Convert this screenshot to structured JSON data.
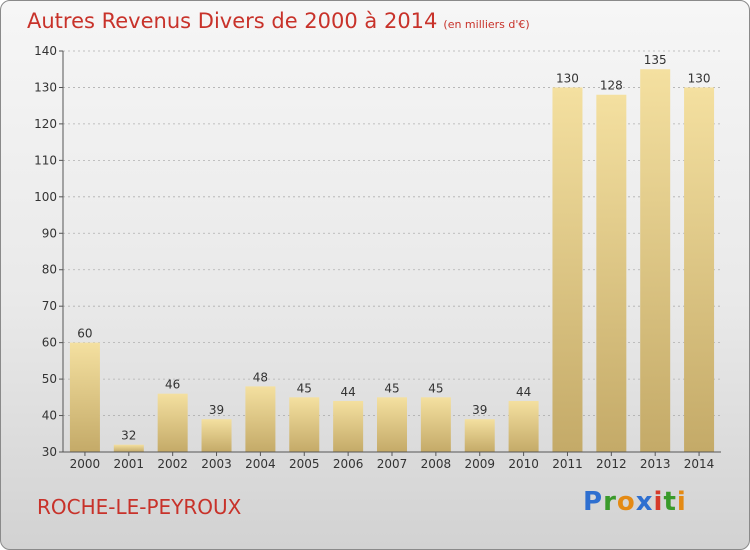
{
  "header": {
    "title": "Autres Revenus Divers de 2000 à 2014",
    "unit": "(en milliers d'€)"
  },
  "footer": {
    "commune": "ROCHE-LE-PEYROUX",
    "logo": "Proxiti"
  },
  "colors": {
    "title": "#c8322a",
    "bar_light": "#f4e0a0",
    "bar_dark": "#c4aa68"
  },
  "chart_data": {
    "type": "bar",
    "title": "Autres Revenus Divers de 2000 à 2014",
    "xlabel": "",
    "ylabel": "",
    "ylim": [
      30,
      140
    ],
    "yticks": [
      30,
      40,
      50,
      60,
      70,
      80,
      90,
      100,
      110,
      120,
      130,
      140
    ],
    "grid": true,
    "categories": [
      "2000",
      "2001",
      "2002",
      "2003",
      "2004",
      "2005",
      "2006",
      "2007",
      "2008",
      "2009",
      "2010",
      "2011",
      "2012",
      "2013",
      "2014"
    ],
    "values": [
      60,
      32,
      46,
      39,
      48,
      45,
      44,
      45,
      45,
      39,
      44,
      130,
      128,
      135,
      130
    ],
    "data_labels": [
      "60",
      "32",
      "46",
      "39",
      "48",
      "45",
      "44",
      "45",
      "45",
      "39",
      "44",
      "130",
      "128",
      "135",
      "130"
    ]
  }
}
